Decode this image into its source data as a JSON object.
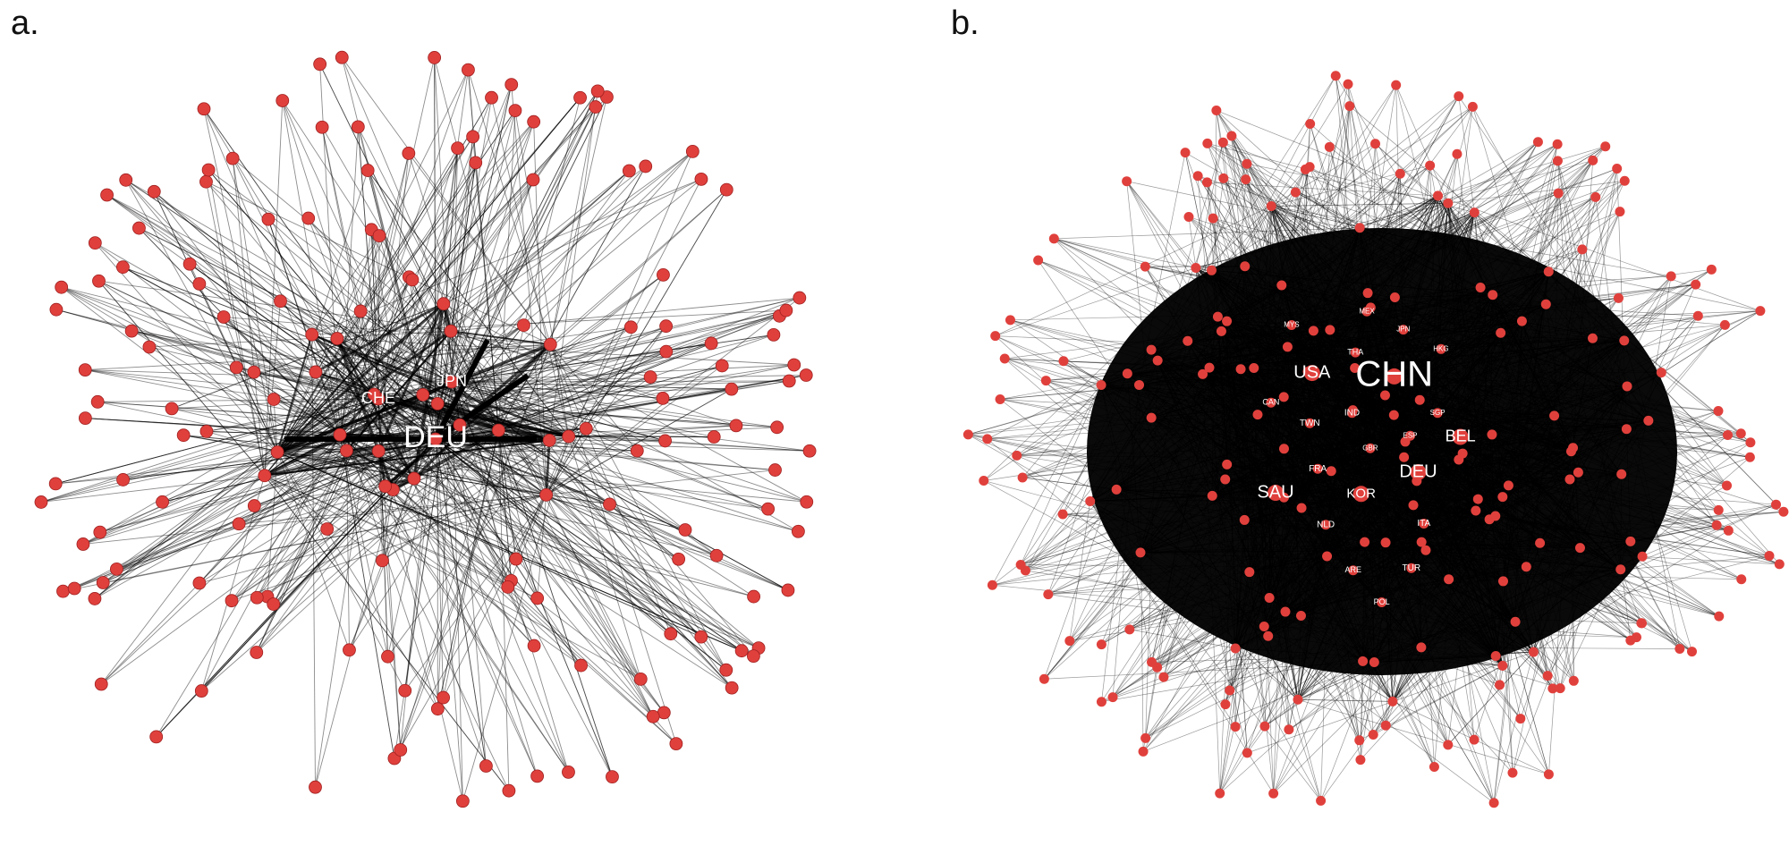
{
  "panels": [
    {
      "label": "a.",
      "node_labels": [
        "DEU",
        "JPN",
        "CHE"
      ]
    },
    {
      "label": "b.",
      "node_labels": [
        "CHN",
        "USA",
        "BEL",
        "DEU",
        "SAU",
        "KOR",
        "TWN",
        "IND",
        "FRA",
        "NLD",
        "ITA",
        "TUR",
        "ARE",
        "POL",
        "CAN",
        "THA",
        "MYS",
        "MEX",
        "JPN",
        "HKG",
        "SGP",
        "ESP",
        "GBR"
      ]
    }
  ]
}
